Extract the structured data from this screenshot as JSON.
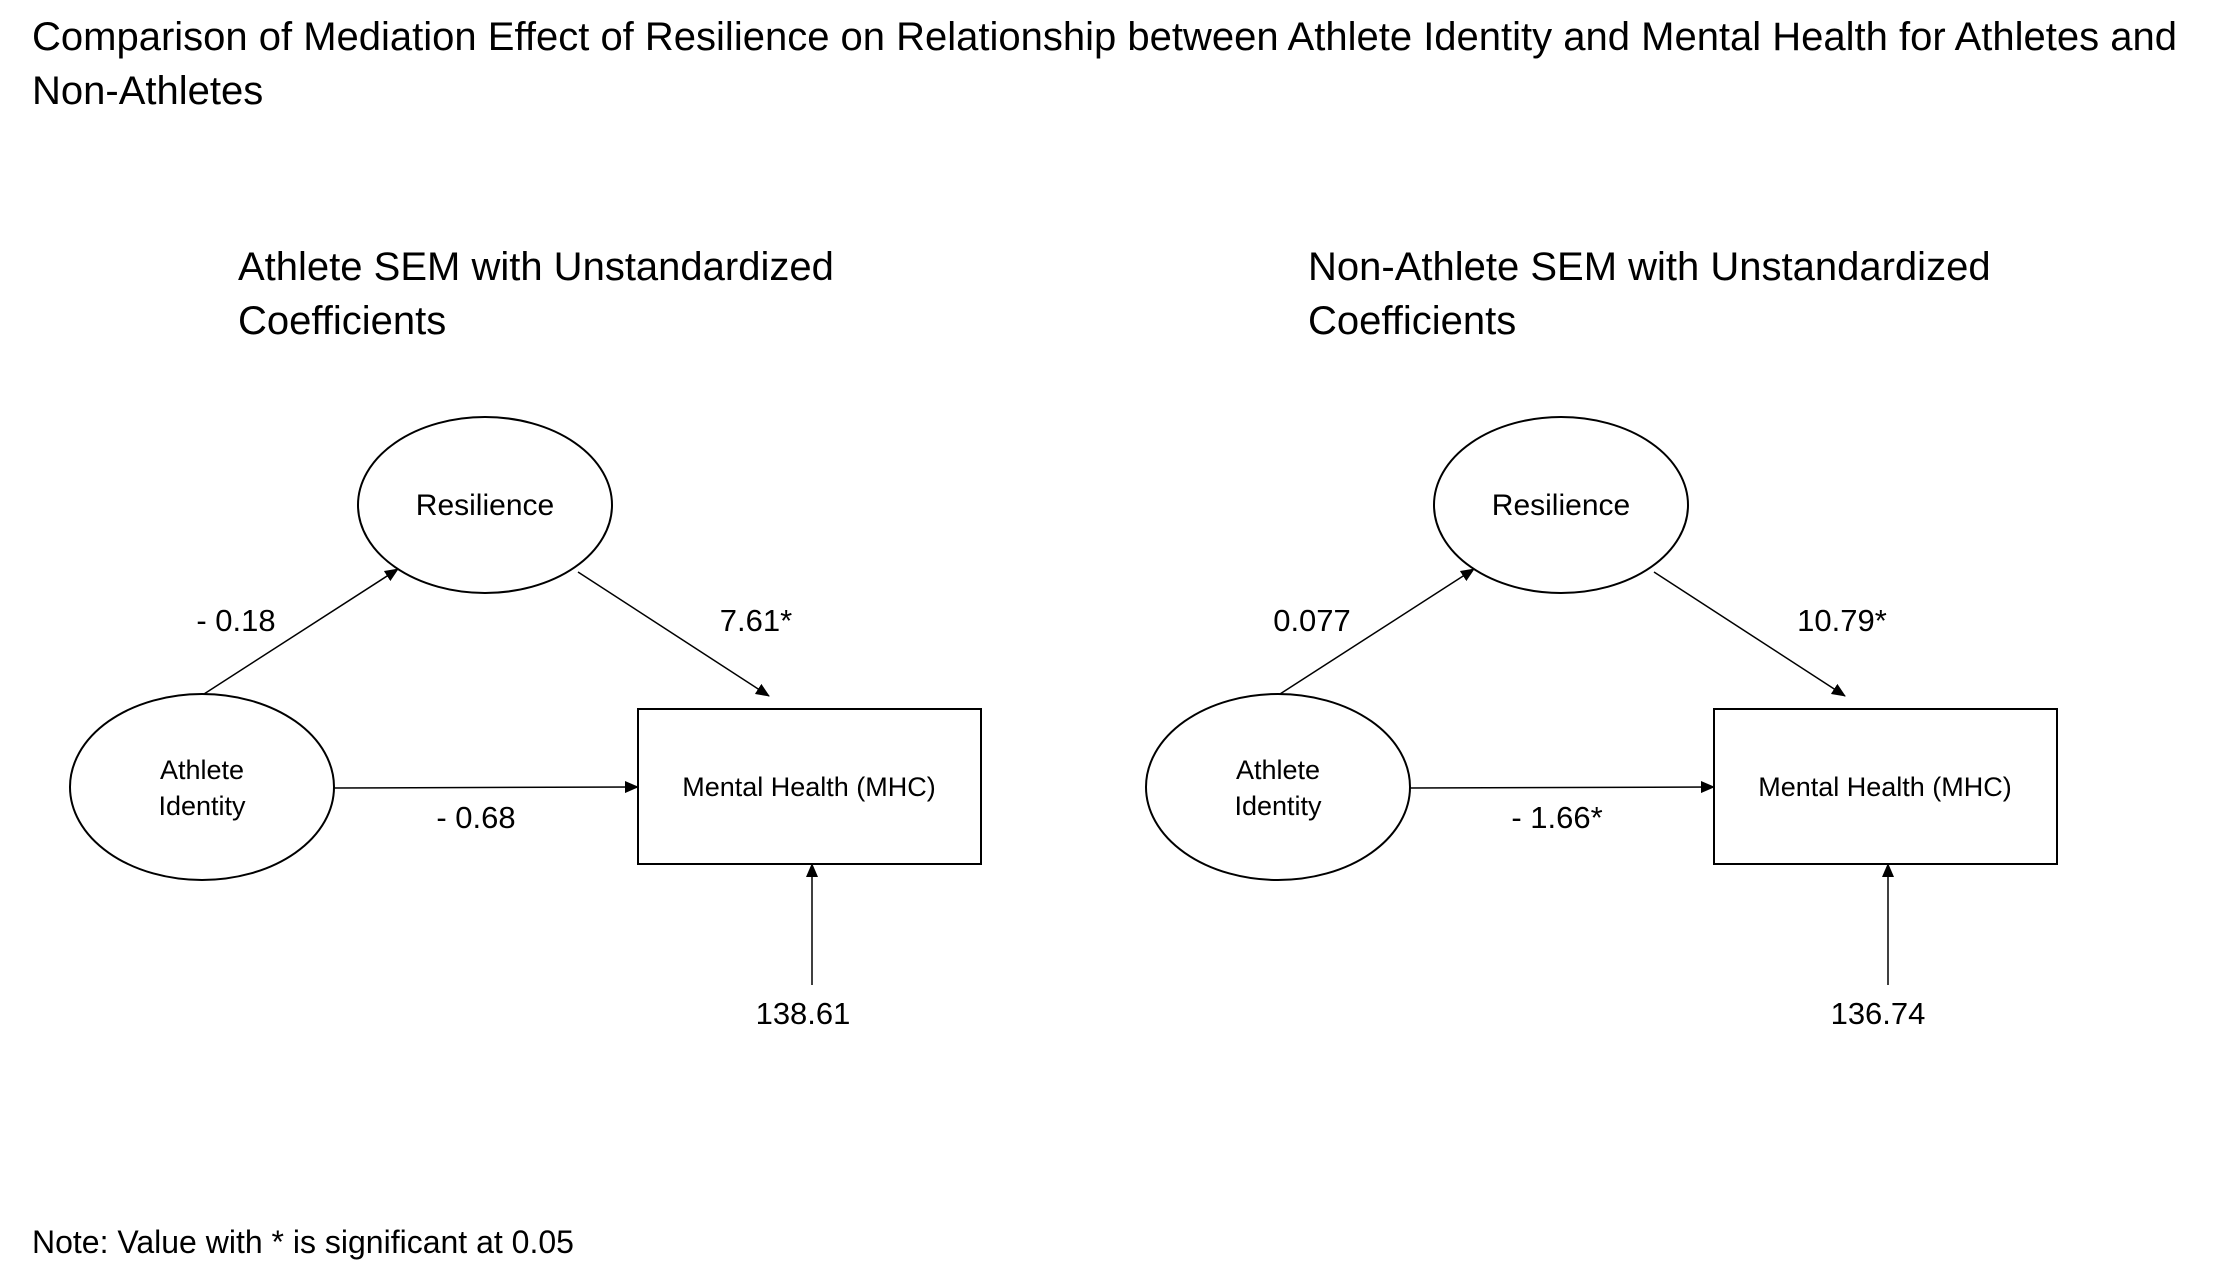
{
  "title": "Comparison of Mediation Effect of Resilience on Relationship between Athlete Identity and Mental Health for Athletes and Non-Athletes",
  "panels": [
    {
      "title": "Athlete SEM with Unstandardized\nCoefficients",
      "nodes": {
        "mediator": "Resilience",
        "predictor_line1": "Athlete",
        "predictor_line2": "Identity",
        "outcome": "Mental Health (MHC)"
      },
      "coefficients": {
        "identity_to_resilience": "- 0.18",
        "resilience_to_mental_health": "7.61*",
        "identity_to_mental_health": "- 0.68",
        "residual": "138.61"
      }
    },
    {
      "title": "Non-Athlete SEM with Unstandardized\nCoefficients",
      "nodes": {
        "mediator": "Resilience",
        "predictor_line1": "Athlete",
        "predictor_line2": "Identity",
        "outcome": "Mental Health (MHC)"
      },
      "coefficients": {
        "identity_to_resilience": "0.077",
        "resilience_to_mental_health": "10.79*",
        "identity_to_mental_health": "- 1.66*",
        "residual": "136.74"
      }
    }
  ],
  "note": "Note: Value with * is significant at 0.05"
}
